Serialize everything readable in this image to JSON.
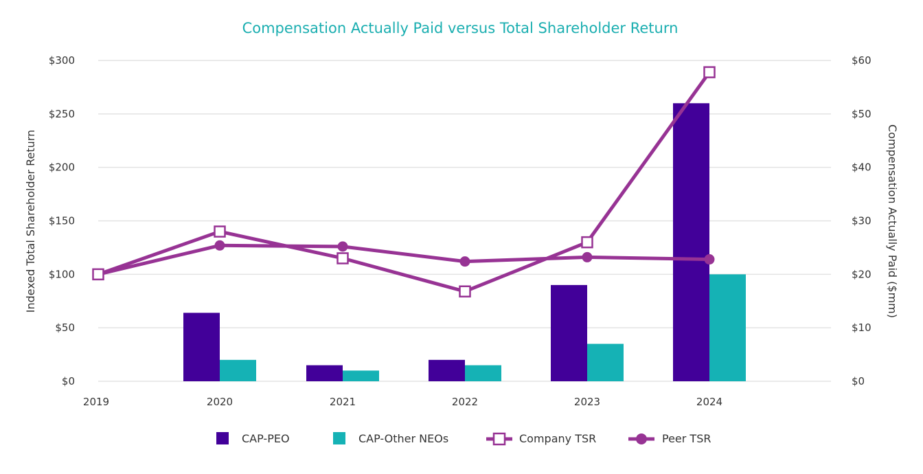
{
  "colors": {
    "title": "#1aaeb0",
    "cap_peo": "#420099",
    "cap_other": "#15b2b5",
    "company_tsr": "#973394",
    "peer_tsr": "#973394",
    "grid": "#e3e3e3"
  },
  "chart_data": {
    "type": "bar+line",
    "title": "Compensation Actually Paid versus Total Shareholder Return",
    "y_left_label": "Indexed Total Shareholder Return",
    "y_right_label": "Compensation Actually Paid ($mm)",
    "y_left_lim": [
      0,
      300
    ],
    "y_right_lim": [
      0,
      60
    ],
    "y_left_ticks": [
      "$0",
      "$50",
      "$100",
      "$150",
      "$200",
      "$250",
      "$300"
    ],
    "y_right_ticks": [
      "$0",
      "$10",
      "$20",
      "$30",
      "$40",
      "$50",
      "$60"
    ],
    "categories": [
      "2019",
      "2020",
      "2021",
      "2022",
      "2023",
      "2024"
    ],
    "bar_series": [
      {
        "name": "CAP-PEO",
        "axis": "right",
        "values": [
          null,
          12.8,
          3.0,
          4.0,
          18.0,
          52.0
        ]
      },
      {
        "name": "CAP-Other NEOs",
        "axis": "right",
        "values": [
          null,
          4.0,
          2.0,
          3.0,
          7.0,
          20.0
        ]
      }
    ],
    "line_series": [
      {
        "name": "Company TSR",
        "axis": "left",
        "marker": "open-square",
        "values": [
          100,
          140,
          115,
          84,
          130,
          289
        ]
      },
      {
        "name": "Peer TSR",
        "axis": "left",
        "marker": "filled-circle",
        "values": [
          100,
          127,
          126,
          112,
          116,
          114
        ]
      }
    ],
    "legend": [
      "CAP-PEO",
      "CAP-Other NEOs",
      "Company TSR",
      "Peer TSR"
    ],
    "legend_position": "bottom-center",
    "grid": true
  }
}
